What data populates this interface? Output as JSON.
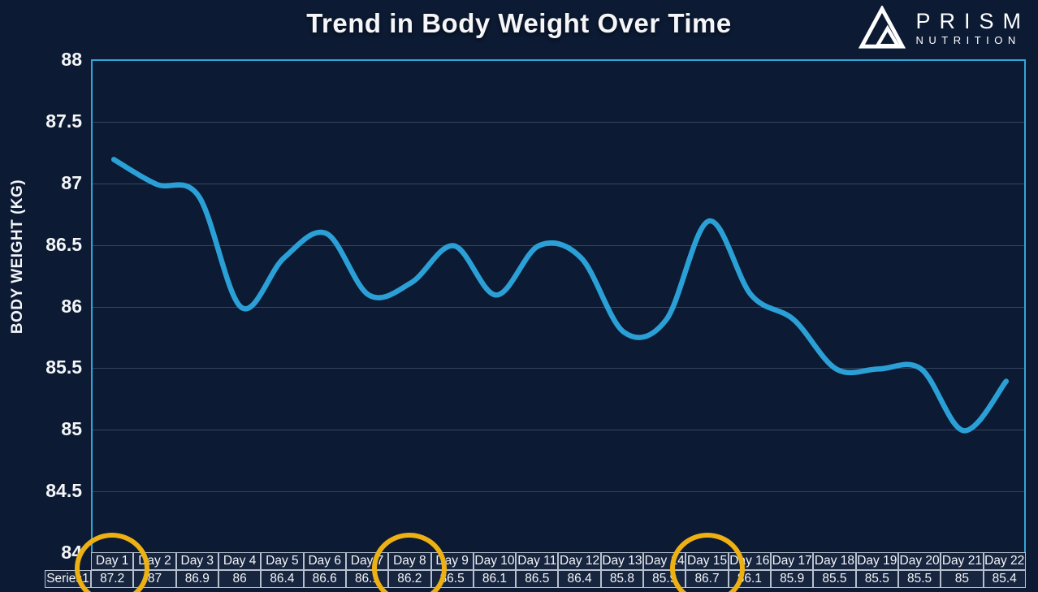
{
  "header": {
    "title": "Trend in Body Weight Over Time",
    "logo": {
      "name": "PRISM",
      "sub": "NUTRITION"
    }
  },
  "chart_data": {
    "type": "line",
    "title": "Trend in Body Weight Over Time",
    "xlabel": "",
    "ylabel": "BODY WEIGHT (KG)",
    "ylim": [
      84,
      88
    ],
    "yticks": [
      "88",
      "87.5",
      "87",
      "86.5",
      "86",
      "85.5",
      "85",
      "84.5",
      "84"
    ],
    "grid": true,
    "legend_position": "none",
    "smooth": true,
    "categories": [
      "Day 1",
      "Day 2",
      "Day 3",
      "Day 4",
      "Day 5",
      "Day 6",
      "Day 7",
      "Day 8",
      "Day 9",
      "Day 10",
      "Day 11",
      "Day 12",
      "Day 13",
      "Day 14",
      "Day 15",
      "Day 16",
      "Day 17",
      "Day 18",
      "Day 19",
      "Day 20",
      "Day 21",
      "Day 22"
    ],
    "series": [
      {
        "name": "Series1",
        "values": [
          87.2,
          87,
          86.9,
          86,
          86.4,
          86.6,
          86.1,
          86.2,
          86.5,
          86.1,
          86.5,
          86.4,
          85.8,
          85.9,
          86.7,
          86.1,
          85.9,
          85.5,
          85.5,
          85.5,
          85,
          85.4
        ]
      }
    ],
    "annotations": {
      "circled_categories": [
        "Day 1",
        "Day 8",
        "Day 15"
      ]
    }
  },
  "colors": {
    "background": "#0c1a33",
    "line": "#2aa0d6",
    "plot_border": "#2fa6d9",
    "gridline": "#36455f",
    "text": "#f4f6f9",
    "table_border": "#b6c0ce",
    "table_cell_bg": "#17253f",
    "highlight_circle": "#eeb113"
  }
}
